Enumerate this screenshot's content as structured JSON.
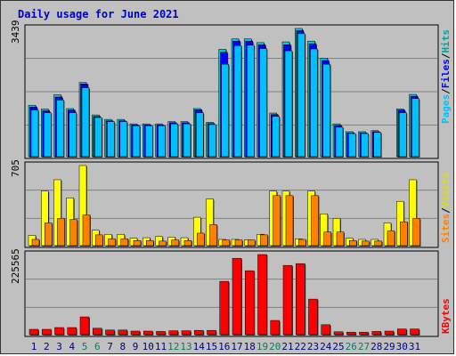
{
  "title": "Daily usage for June 2021",
  "panels": {
    "top": {
      "max_label": "3439",
      "legend": [
        "Pages",
        "/",
        "Files",
        "/",
        "Hits"
      ]
    },
    "mid": {
      "max_label": "705",
      "legend": [
        "Sites",
        "/",
        "Visits"
      ]
    },
    "bot": {
      "max_label": "225565",
      "legend": [
        "KBytes"
      ]
    }
  },
  "colors": {
    "hits": "#00cccc",
    "files": "#0000ff",
    "pages": "#00c0ff",
    "visits": "#ffff00",
    "sites": "#ff8000",
    "kbytes": "#ff0000",
    "weekend_day": "#00805c",
    "weekday": "#000080",
    "title": "#0000cc"
  },
  "chart_data": {
    "type": "bar",
    "title": "Daily usage for June 2021",
    "x": [
      1,
      2,
      3,
      4,
      5,
      6,
      7,
      8,
      9,
      10,
      11,
      12,
      13,
      14,
      15,
      16,
      17,
      18,
      19,
      20,
      21,
      22,
      23,
      24,
      25,
      26,
      27,
      28,
      29,
      30,
      31
    ],
    "weekend_days": [
      5,
      6,
      12,
      13,
      19,
      20,
      26,
      27
    ],
    "series": [
      {
        "name": "Hits",
        "panel": "top",
        "values": [
          1380,
          1280,
          1660,
          1290,
          1990,
          1120,
          1000,
          1000,
          880,
          880,
          880,
          940,
          940,
          1290,
          920,
          2880,
          3160,
          3160,
          3060,
          1170,
          3080,
          3440,
          3100,
          2640,
          880,
          670,
          670,
          700,
          0,
          1280,
          1670
        ]
      },
      {
        "name": "Files",
        "panel": "top",
        "values": [
          1330,
          1230,
          1600,
          1250,
          1950,
          1080,
          960,
          960,
          850,
          850,
          850,
          910,
          910,
          1260,
          890,
          2800,
          3100,
          3100,
          3000,
          1130,
          3000,
          3380,
          3030,
          2580,
          840,
          640,
          640,
          670,
          0,
          1250,
          1620
        ]
      },
      {
        "name": "Pages",
        "panel": "top",
        "values": [
          1250,
          1180,
          1520,
          1180,
          1850,
          1050,
          940,
          940,
          830,
          830,
          830,
          880,
          880,
          1180,
          860,
          2480,
          2980,
          2990,
          2900,
          1080,
          2840,
          3300,
          2890,
          2480,
          790,
          620,
          620,
          650,
          0,
          1180,
          1560
        ]
      },
      {
        "name": "Visits",
        "panel": "mid",
        "values": [
          90,
          480,
          580,
          420,
          705,
          135,
          100,
          100,
          65,
          70,
          80,
          75,
          70,
          250,
          410,
          55,
          55,
          50,
          100,
          480,
          480,
          60,
          480,
          280,
          240,
          65,
          55,
          55,
          200,
          390,
          580
        ]
      },
      {
        "name": "Sites",
        "panel": "mid",
        "values": [
          55,
          200,
          240,
          230,
          270,
          95,
          60,
          60,
          45,
          45,
          40,
          50,
          45,
          110,
          185,
          50,
          50,
          50,
          95,
          440,
          440,
          55,
          440,
          120,
          120,
          45,
          40,
          40,
          130,
          210,
          240
        ]
      },
      {
        "name": "KBytes",
        "panel": "bot",
        "values": [
          15000,
          15000,
          20000,
          20000,
          50000,
          18000,
          13000,
          13000,
          10000,
          10000,
          9000,
          11000,
          11000,
          12000,
          12000,
          150000,
          215000,
          180000,
          225565,
          40000,
          195000,
          200000,
          100000,
          28000,
          8000,
          7000,
          7000,
          9000,
          10000,
          16000,
          16000
        ]
      }
    ],
    "panels": {
      "top": {
        "ylim": [
          0,
          3439
        ]
      },
      "mid": {
        "ylim": [
          0,
          705
        ]
      },
      "bot": {
        "ylim": [
          0,
          225565
        ]
      }
    }
  }
}
